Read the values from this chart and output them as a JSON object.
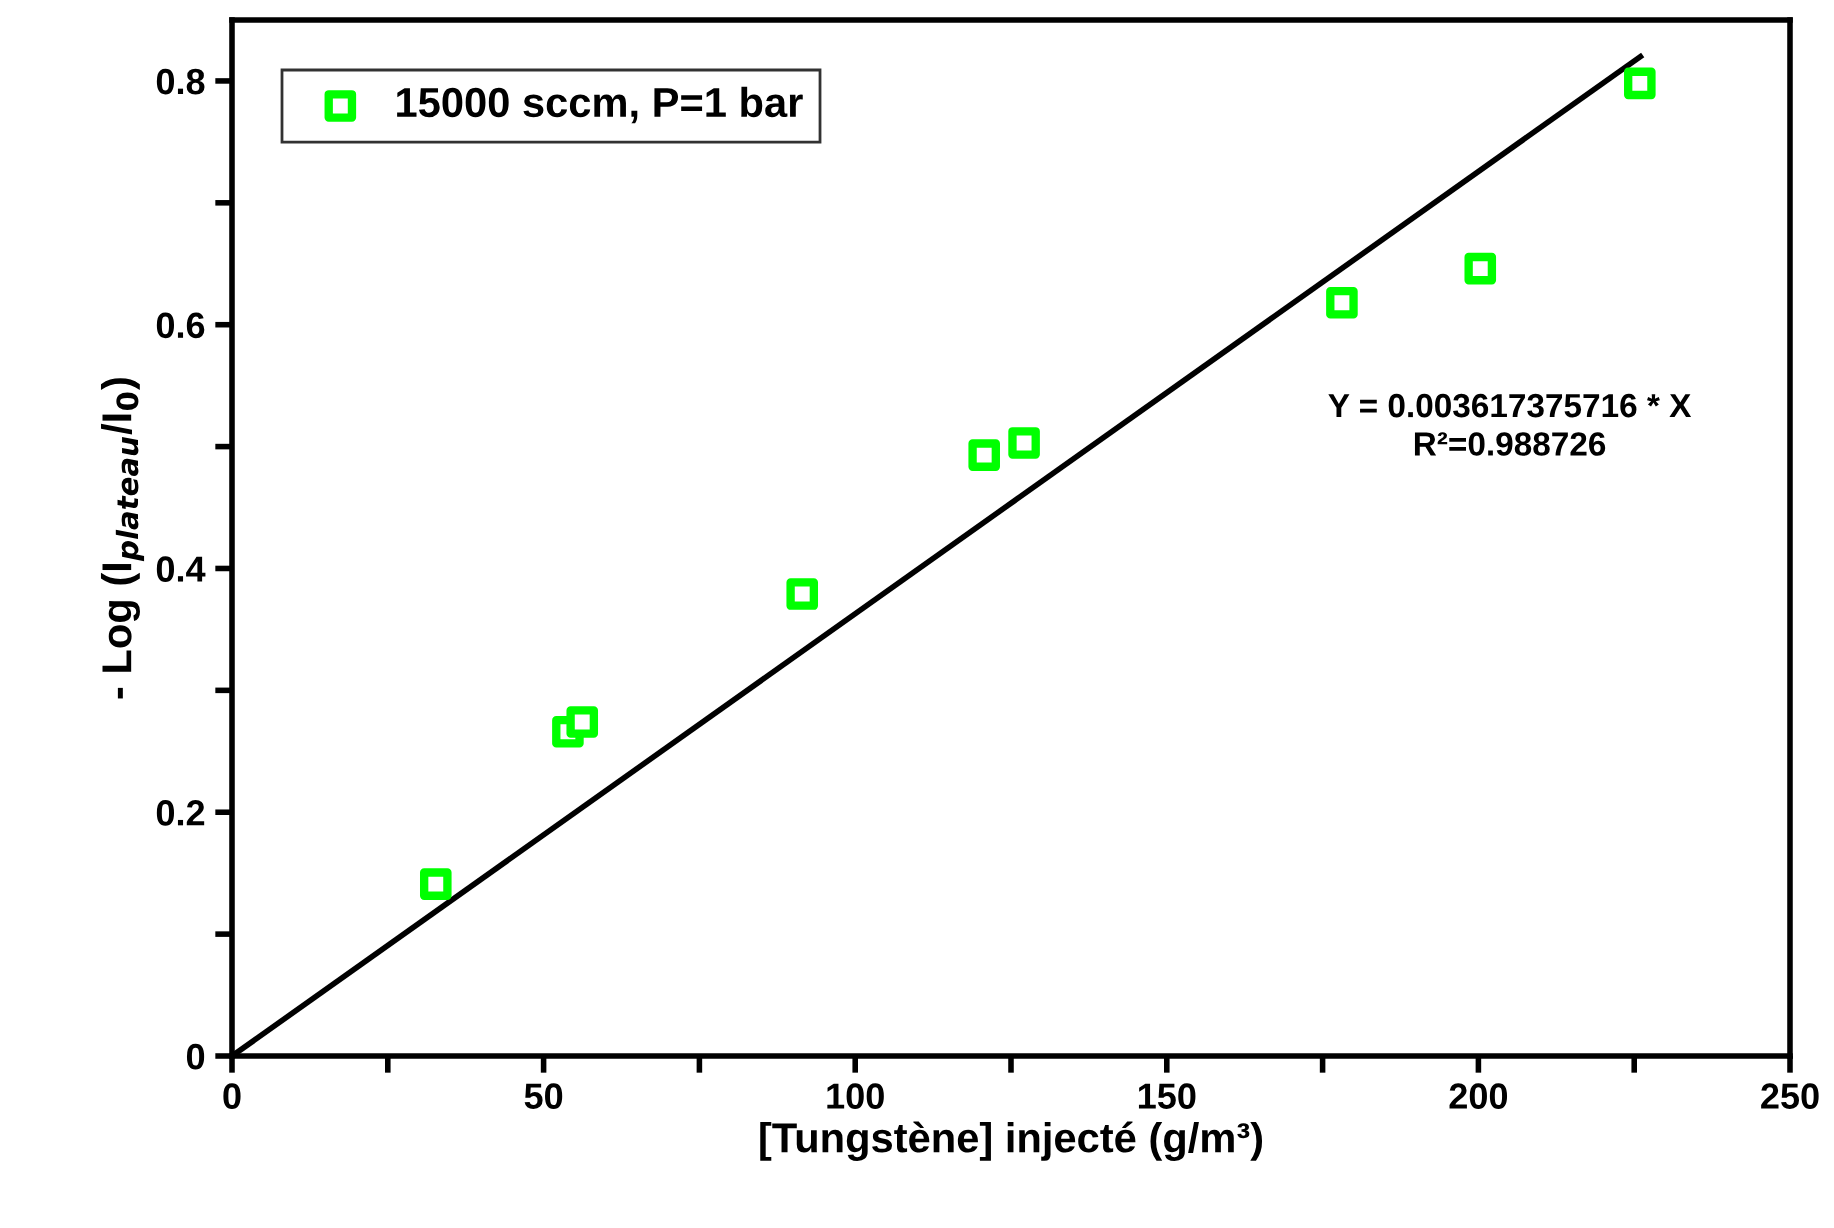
{
  "chart_data": {
    "type": "scatter",
    "xlabel": "[Tungstène] injecté (g/m³)",
    "ylabel": "- Log (I$_{plateau}$/I$_{0}$)",
    "xlim": [
      0,
      250
    ],
    "ylim": [
      0,
      0.85
    ],
    "xticks": [
      0,
      {
        "value": 25,
        "label": null
      },
      50,
      {
        "value": 75,
        "label": null
      },
      100,
      {
        "value": 125,
        "label": null
      },
      150,
      {
        "value": 175,
        "label": null
      },
      200,
      {
        "value": 225,
        "label": null
      },
      250
    ],
    "yticks": [
      0,
      {
        "value": 0.1,
        "label": null
      },
      0.2,
      {
        "value": 0.3,
        "label": null
      },
      0.4,
      {
        "value": 0.5,
        "label": null
      },
      0.6,
      {
        "value": 0.7,
        "label": null
      },
      0.8
    ],
    "grid": false,
    "legend": "top left",
    "marker": "square",
    "series": [
      {
        "name": "15000 sccm, P=1 bar",
        "color": "#00ff00",
        "x": [
          32.7,
          53.9,
          56.2,
          91.5,
          120.7,
          127.1,
          178.1,
          200.3,
          225.9
        ],
        "values": [
          0.141,
          0.266,
          0.274,
          0.379,
          0.493,
          0.503,
          0.618,
          0.646,
          0.798
        ]
      },
      {
        "type": "line",
        "color": "#000000",
        "x": [
          0,
          226
        ],
        "values": [
          0,
          0.82
        ],
        "line_style": "solid",
        "marker": "none"
      }
    ],
    "annotations": [
      "Y = 0.003617375716 * X",
      "R²=0.988726"
    ]
  }
}
